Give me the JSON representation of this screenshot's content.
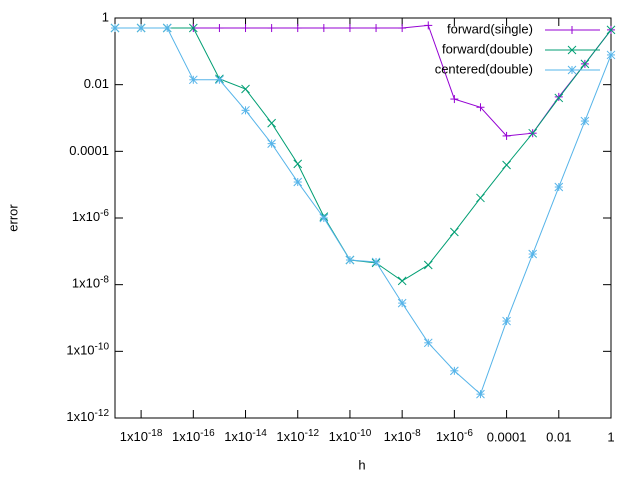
{
  "chart_data": {
    "type": "line",
    "xlabel": "h",
    "ylabel": "error",
    "log_x": true,
    "log_y": true,
    "legend": "top-right",
    "xlim": [
      1e-19,
      1
    ],
    "ylim": [
      1e-12,
      1
    ],
    "xticks": [
      {
        "value": 1e-18,
        "label": "1x10-18"
      },
      {
        "value": 1e-16,
        "label": "1x10-16"
      },
      {
        "value": 1e-14,
        "label": "1x10-14"
      },
      {
        "value": 1e-12,
        "label": "1x10-12"
      },
      {
        "value": 1e-10,
        "label": "1x10-10"
      },
      {
        "value": 1e-08,
        "label": "1x10-8"
      },
      {
        "value": 1e-06,
        "label": "1x10-6"
      },
      0.0001,
      0.01,
      1
    ],
    "yticks": [
      {
        "value": 1e-12,
        "label": "1x10-12"
      },
      {
        "value": 1e-10,
        "label": "1x10-10"
      },
      {
        "value": 1e-08,
        "label": "1x10-8"
      },
      {
        "value": 1e-06,
        "label": "1x10-6"
      },
      0.0001,
      0.01,
      1
    ],
    "series": [
      {
        "name": "forward(single)",
        "color": "#9400d3",
        "marker": "plus",
        "x": [
          1e-16,
          1e-15,
          1e-14,
          1e-13,
          1e-12,
          1e-11,
          1e-10,
          1e-09,
          1e-08,
          1e-07,
          1e-06,
          1e-05,
          0.0001,
          0.001,
          0.01,
          0.1,
          1
        ],
        "values": [
          0.5,
          0.5,
          0.5,
          0.5,
          0.5,
          0.5,
          0.5,
          0.5,
          0.5,
          0.6,
          0.0037,
          0.0021,
          0.00029,
          0.00035,
          0.0043,
          0.042,
          0.44
        ]
      },
      {
        "name": "forward(double)",
        "color": "#009e73",
        "marker": "cross",
        "x": [
          1e-19,
          1e-18,
          1e-17,
          1e-16,
          1e-15,
          1e-14,
          1e-13,
          1e-12,
          1e-11,
          1e-10,
          1e-09,
          1e-08,
          1e-07,
          1e-06,
          1e-05,
          0.0001,
          0.001,
          0.01,
          0.1,
          1
        ],
        "values": [
          0.5,
          0.5,
          0.5,
          0.5,
          0.015,
          0.0074,
          0.0007,
          4.2e-05,
          1.1e-06,
          5.5e-08,
          4.5e-08,
          1.3e-08,
          3.9e-08,
          3.8e-07,
          4e-06,
          3.9e-05,
          0.00035,
          0.004,
          0.042,
          0.44
        ]
      },
      {
        "name": "centered(double)",
        "color": "#56b4e9",
        "marker": "star",
        "x": [
          1e-19,
          1e-18,
          1e-17,
          1e-16,
          1e-15,
          1e-14,
          1e-13,
          1e-12,
          1e-11,
          1e-10,
          1e-09,
          1e-08,
          1e-07,
          1e-06,
          1e-05,
          0.0001,
          0.001,
          0.01,
          0.1,
          1
        ],
        "values": [
          0.5,
          0.5,
          0.5,
          0.014,
          0.014,
          0.0017,
          0.00017,
          1.2e-05,
          1e-06,
          5.5e-08,
          4.8e-08,
          2.8e-09,
          1.8e-10,
          2.6e-11,
          5.2e-12,
          8.1e-10,
          8.3e-08,
          8.5e-06,
          0.00081,
          0.078
        ]
      }
    ]
  }
}
